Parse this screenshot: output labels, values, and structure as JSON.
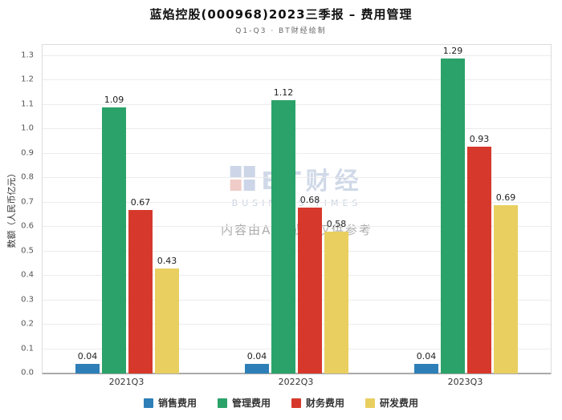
{
  "title": "蓝焰控股(000968)2023三季报 – 费用管理",
  "subtitle": "Q1-Q3 · BT财经绘制",
  "watermark": {
    "brand": "BT财经",
    "brand_sub": "BUSINESS TIMES",
    "note": "内容由AI生成，仅供参考"
  },
  "chart_data": {
    "type": "bar",
    "title": "蓝焰控股(000968)2023三季报 – 费用管理",
    "subtitle": "Q1-Q3 · BT财经绘制",
    "categories": [
      "2021Q3",
      "2022Q3",
      "2023Q3"
    ],
    "series": [
      {
        "name": "销售费用",
        "color": "#2e7fb8",
        "values": [
          0.04,
          0.04,
          0.04
        ]
      },
      {
        "name": "管理费用",
        "color": "#2ba269",
        "values": [
          1.09,
          1.12,
          1.29
        ]
      },
      {
        "name": "财务费用",
        "color": "#d6392c",
        "values": [
          0.67,
          0.68,
          0.93
        ]
      },
      {
        "name": "研发费用",
        "color": "#e9cf60",
        "values": [
          0.43,
          0.58,
          0.69
        ]
      }
    ],
    "xlabel": "",
    "ylabel": "数额（人民币亿元）",
    "ylim": [
      0,
      1.345
    ],
    "yticks": [
      0.0,
      0.1,
      0.2,
      0.3,
      0.4,
      0.5,
      0.6,
      0.7,
      0.8,
      0.9,
      1.0,
      1.1,
      1.2,
      1.3
    ],
    "grid": true,
    "legend_position": "bottom"
  }
}
